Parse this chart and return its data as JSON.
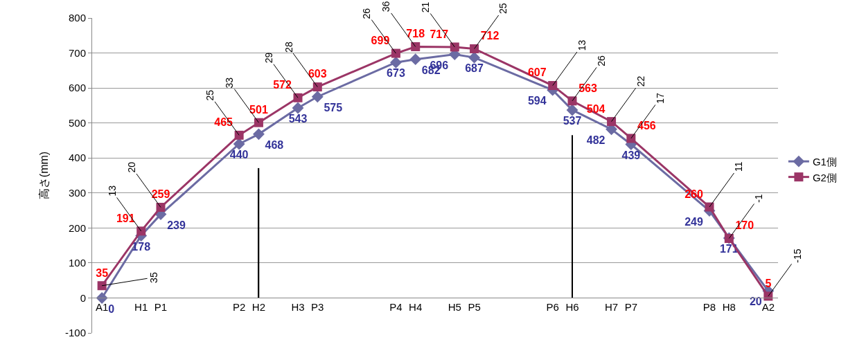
{
  "chart_data": {
    "type": "line",
    "ylabel": "高さ(mm)",
    "categories": [
      "A1",
      null,
      "H1",
      "P1",
      null,
      null,
      null,
      "P2",
      "H2",
      null,
      "H3",
      "P3",
      null,
      null,
      null,
      "P4",
      "H4",
      null,
      "H5",
      "P5",
      null,
      null,
      null,
      "P6",
      "H6",
      null,
      "H7",
      "P7",
      null,
      null,
      null,
      "P8",
      "H8",
      null,
      "A2"
    ],
    "ylim": [
      -100,
      800
    ],
    "yticks": [
      -100,
      0,
      100,
      200,
      300,
      400,
      500,
      600,
      700,
      800
    ],
    "grid": "y",
    "legend": "right",
    "data_labels": true,
    "line_style": "solid",
    "series": [
      {
        "name": "G1側",
        "color": "#6b6ba3",
        "marker": "diamond",
        "values": [
          0,
          null,
          178,
          239,
          null,
          null,
          null,
          440,
          468,
          null,
          543,
          575,
          null,
          null,
          null,
          673,
          682,
          null,
          696,
          687,
          null,
          null,
          null,
          594,
          537,
          null,
          482,
          439,
          null,
          null,
          null,
          249,
          171,
          null,
          20
        ]
      },
      {
        "name": "G2側",
        "color": "#9b3566",
        "marker": "square",
        "values": [
          35,
          null,
          191,
          259,
          null,
          null,
          null,
          465,
          501,
          null,
          572,
          603,
          null,
          null,
          null,
          699,
          718,
          null,
          717,
          712,
          null,
          null,
          null,
          607,
          563,
          null,
          504,
          456,
          null,
          null,
          null,
          260,
          170,
          null,
          5
        ]
      },
      {
        "type": "bar",
        "color": "#000000",
        "value_labels": [
          null,
          null,
          null,
          null,
          null,
          null,
          null,
          null,
          null,
          null,
          null,
          null,
          null,
          null,
          null,
          null,
          null,
          null,
          null,
          null,
          null,
          null,
          null,
          null,
          null,
          null,
          null,
          null,
          null,
          null,
          null,
          null,
          null,
          null,
          null
        ],
        "values": [
          null,
          null,
          null,
          null,
          null,
          null,
          null,
          null,
          371,
          null,
          null,
          null,
          null,
          null,
          null,
          null,
          null,
          null,
          null,
          null,
          null,
          null,
          null,
          null,
          465,
          null,
          null,
          null,
          null,
          null,
          null,
          null,
          null,
          null,
          null
        ]
      }
    ],
    "annotations": [
      {
        "text": "35",
        "x": "A1",
        "y": 35
      },
      {
        "text": "13",
        "x": "H1",
        "y": 191
      },
      {
        "text": "20",
        "x": "P1",
        "y": 259
      },
      {
        "text": "25",
        "x": "P2",
        "y": 465
      },
      {
        "text": "33",
        "x": "H2",
        "y": 501
      },
      {
        "text": "29",
        "x": "H3",
        "y": 572
      },
      {
        "text": "28",
        "x": "P3",
        "y": 603
      },
      {
        "text": "26",
        "x": "P4",
        "y": 699
      },
      {
        "text": "36",
        "x": "H4",
        "y": 718
      },
      {
        "text": "21",
        "x": "H5",
        "y": 717
      },
      {
        "text": "25",
        "x": "P5",
        "y": 712
      },
      {
        "text": "13",
        "x": "P6",
        "y": 607
      },
      {
        "text": "26",
        "x": "H6",
        "y": 563
      },
      {
        "text": "22",
        "x": "H7",
        "y": 504
      },
      {
        "text": "17",
        "x": "P7",
        "y": 456
      },
      {
        "text": "11",
        "x": "P8",
        "y": 260
      },
      {
        "text": "-1",
        "x": "H8",
        "y": 170
      },
      {
        "text": "-15",
        "x": "A2",
        "y": 5
      }
    ]
  }
}
